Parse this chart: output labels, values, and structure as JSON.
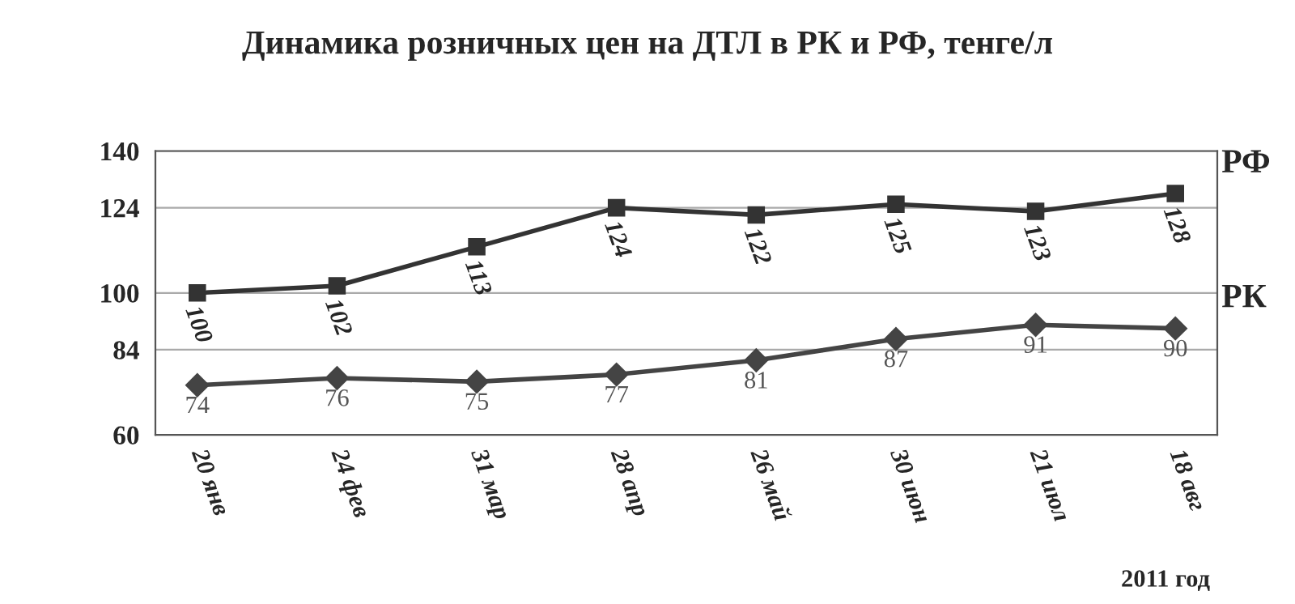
{
  "chart_data": {
    "type": "line",
    "title": "Динамика розничных цен на ДТЛ в РК и РФ, тенге/л",
    "categories": [
      "20 янв",
      "24 фев",
      "31 мар",
      "28 апр",
      "26 май",
      "30 июн",
      "21 июл",
      "18 авг"
    ],
    "series": [
      {
        "name": "РФ",
        "color": "#333333",
        "marker": "square",
        "values": [
          100,
          102,
          113,
          124,
          122,
          125,
          123,
          128
        ]
      },
      {
        "name": "РК",
        "color": "#444444",
        "marker": "diamond",
        "values": [
          74,
          76,
          75,
          77,
          81,
          87,
          91,
          90
        ]
      }
    ],
    "ylim": [
      60,
      140
    ],
    "yticks": [
      60,
      84,
      100,
      124,
      140
    ],
    "grid": "y",
    "data_labels": true,
    "legend": false,
    "annotations": [
      "2011 год"
    ]
  }
}
